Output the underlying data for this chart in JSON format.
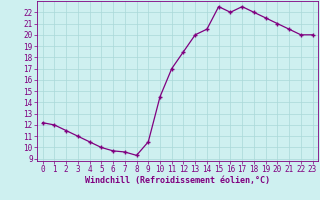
{
  "x": [
    0,
    1,
    2,
    3,
    4,
    5,
    6,
    7,
    8,
    9,
    10,
    11,
    12,
    13,
    14,
    15,
    16,
    17,
    18,
    19,
    20,
    21,
    22,
    23
  ],
  "y": [
    12.2,
    12.0,
    11.5,
    11.0,
    10.5,
    10.0,
    9.7,
    9.6,
    9.3,
    10.5,
    14.5,
    17.0,
    18.5,
    20.0,
    20.5,
    22.5,
    22.0,
    22.5,
    22.0,
    21.5,
    21.0,
    20.5,
    20.0,
    20.0
  ],
  "ylim": [
    8.8,
    23.0
  ],
  "yticks": [
    9,
    10,
    11,
    12,
    13,
    14,
    15,
    16,
    17,
    18,
    19,
    20,
    21,
    22
  ],
  "xticks": [
    0,
    1,
    2,
    3,
    4,
    5,
    6,
    7,
    8,
    9,
    10,
    11,
    12,
    13,
    14,
    15,
    16,
    17,
    18,
    19,
    20,
    21,
    22,
    23
  ],
  "xlabel": "Windchill (Refroidissement éolien,°C)",
  "line_color": "#800080",
  "marker": "+",
  "bg_color": "#cef0f0",
  "grid_color": "#aad8d8",
  "tick_color": "#800080",
  "label_color": "#800080",
  "tick_fontsize": 5.5,
  "xlabel_fontsize": 6.0
}
